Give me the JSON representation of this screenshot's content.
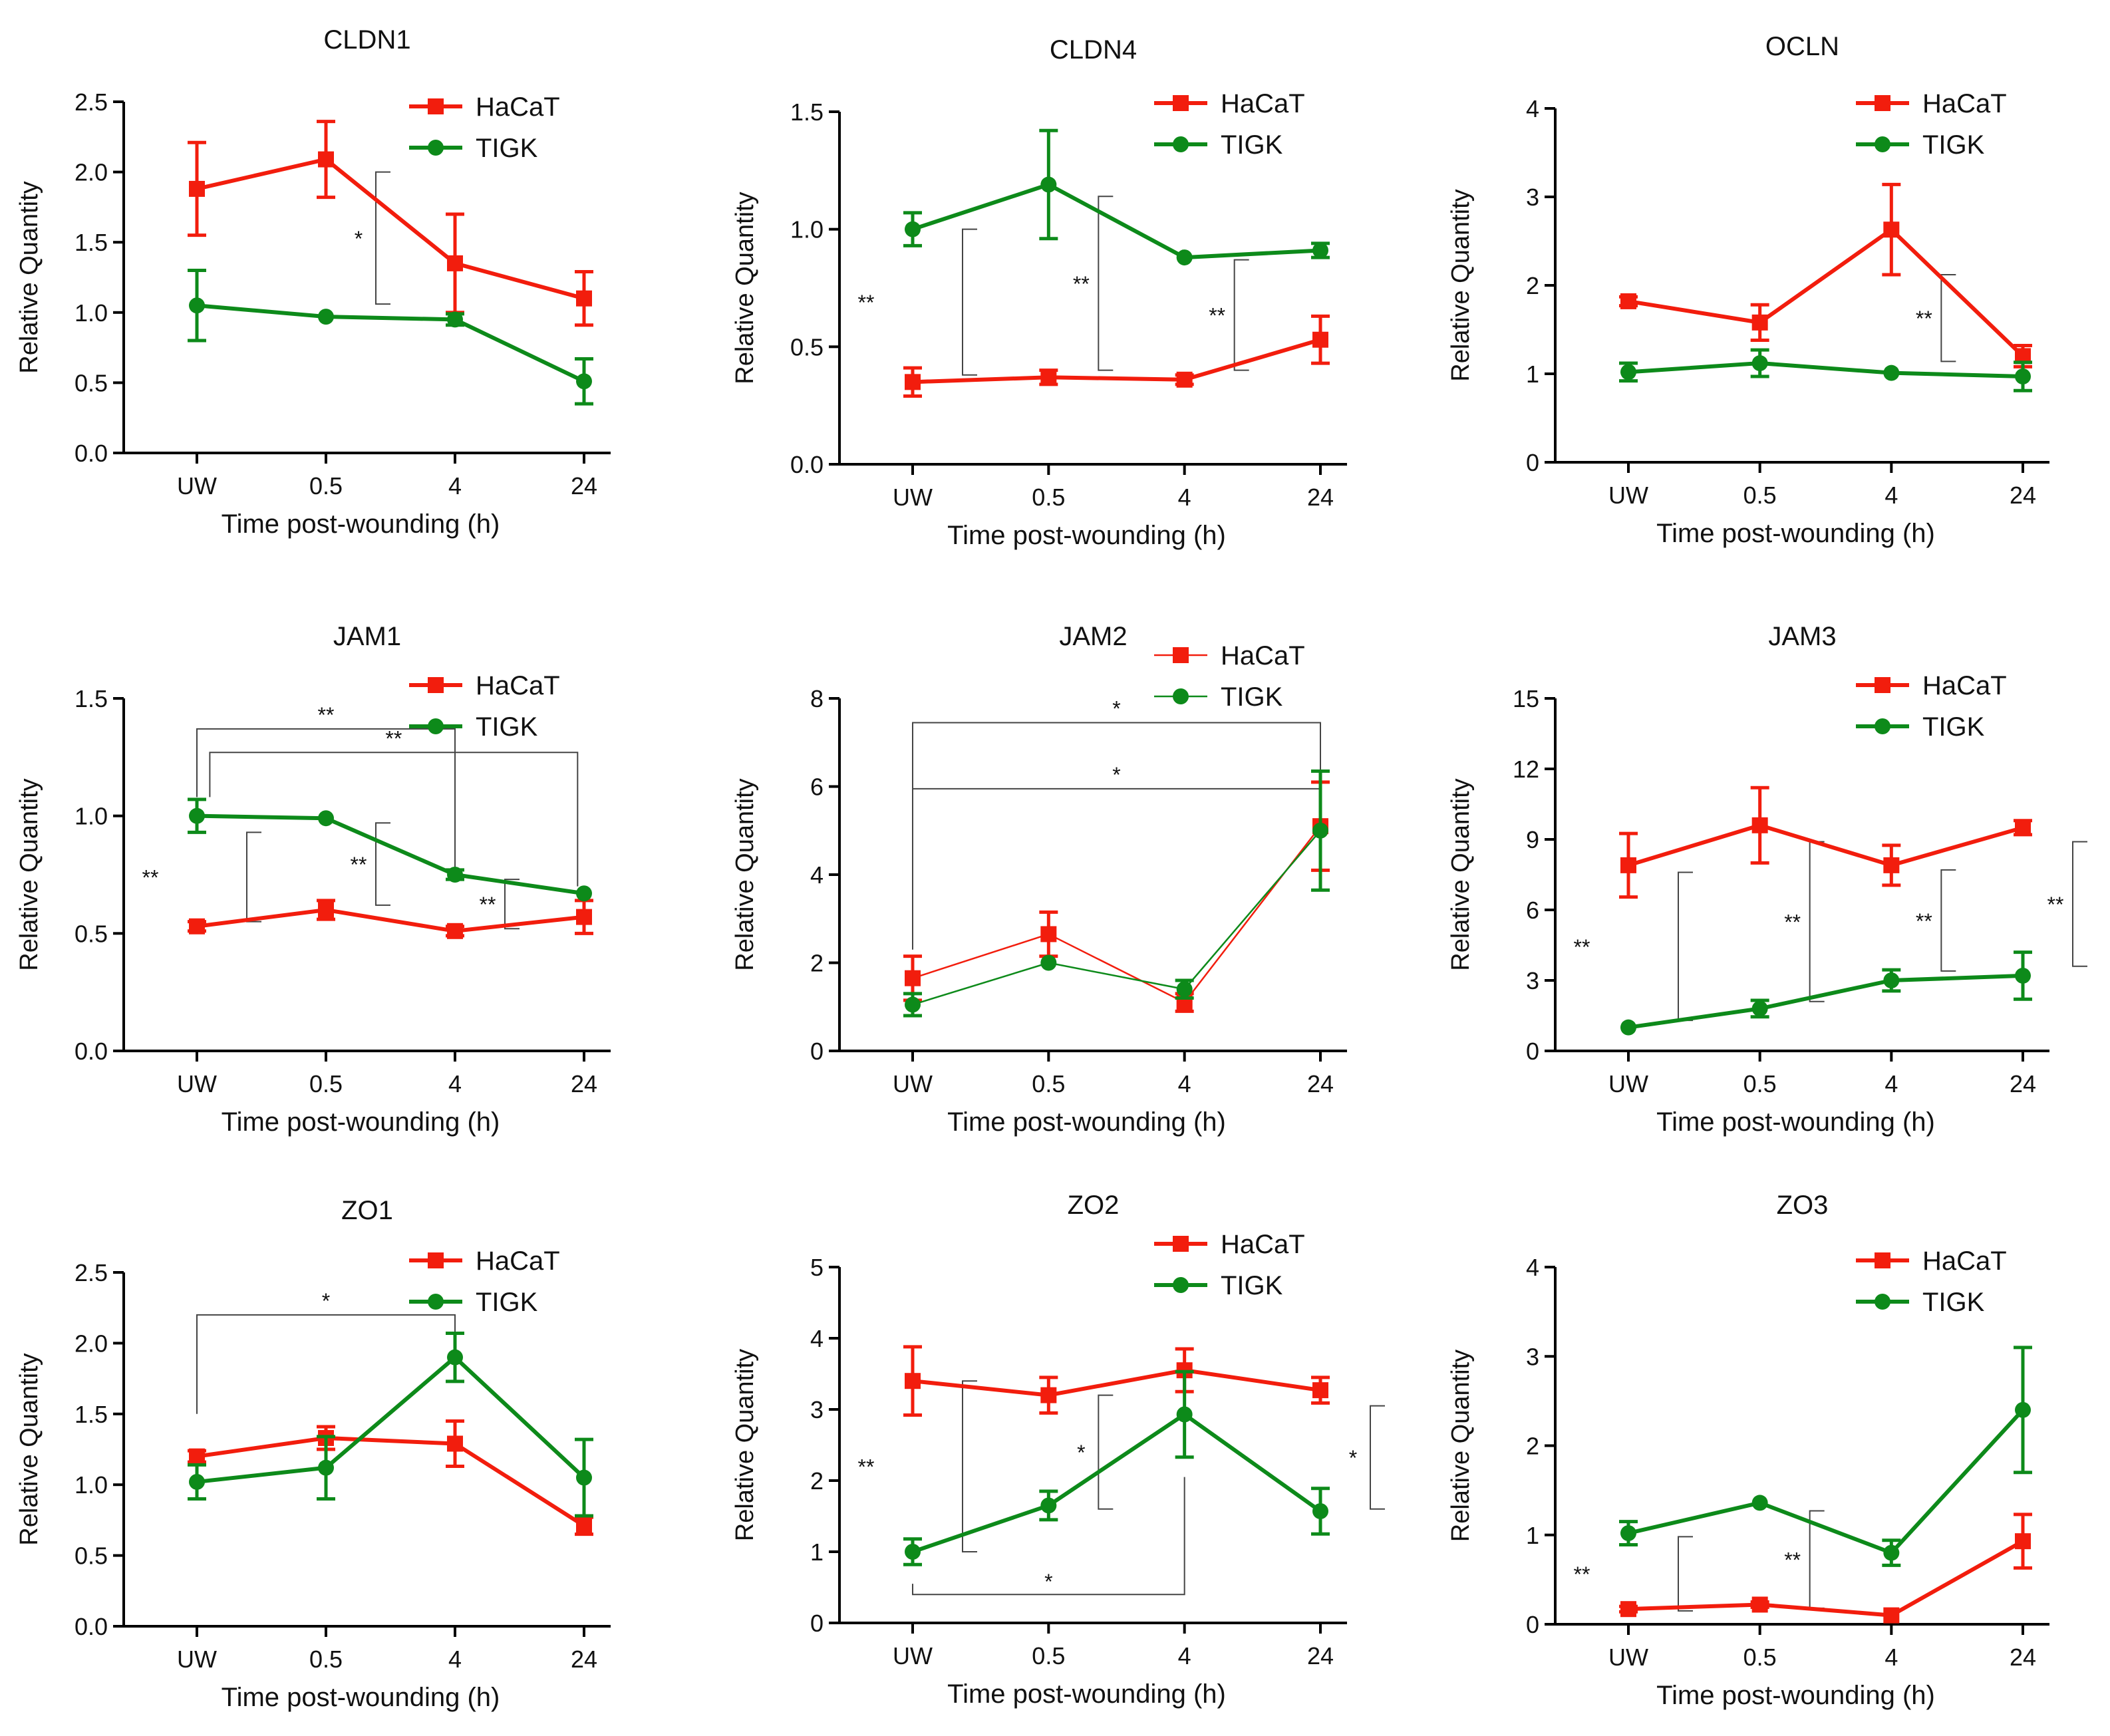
{
  "colors": {
    "hacat": "#f21d0d",
    "tigk": "#0d8a1a",
    "axis": "#000000",
    "bracket": "#444444"
  },
  "legend_labels": {
    "hacat": "HaCaT",
    "tigk": "TIGK"
  },
  "chart_data": [
    {
      "type": "line",
      "id": "CLDN1",
      "title": "CLDN1",
      "xlabel": "Time post-wounding (h)",
      "ylabel": "Relative Quantity",
      "categories": [
        "UW",
        "0.5",
        "4",
        "24"
      ],
      "ylim": [
        0,
        2.5
      ],
      "yticks": [
        "0.0",
        "0.5",
        "1.0",
        "1.5",
        "2.0",
        "2.5"
      ],
      "series": [
        {
          "name": "HaCaT",
          "values": [
            1.88,
            2.09,
            1.35,
            1.1
          ],
          "errors": [
            0.33,
            0.27,
            0.35,
            0.19
          ]
        },
        {
          "name": "TIGK",
          "values": [
            1.05,
            0.97,
            0.95,
            0.51
          ],
          "errors": [
            0.25,
            0.0,
            0.04,
            0.16
          ]
        }
      ],
      "annotations": [
        {
          "label": "*",
          "kind": "vertical",
          "x": 1,
          "from": 1.06,
          "to": 2.0
        }
      ]
    },
    {
      "type": "line",
      "id": "CLDN4",
      "title": "CLDN4",
      "xlabel": "Time post-wounding (h)",
      "ylabel": "Relative Quantity",
      "categories": [
        "UW",
        "0.5",
        "4",
        "24"
      ],
      "ylim": [
        0,
        1.5
      ],
      "yticks": [
        "0.0",
        "0.5",
        "1.0",
        "1.5"
      ],
      "series": [
        {
          "name": "HaCaT",
          "values": [
            0.35,
            0.37,
            0.36,
            0.53
          ],
          "errors": [
            0.06,
            0.03,
            0.02,
            0.1
          ]
        },
        {
          "name": "TIGK",
          "values": [
            1.0,
            1.19,
            0.88,
            0.91
          ],
          "errors": [
            0.07,
            0.23,
            0.0,
            0.03
          ]
        }
      ],
      "annotations": [
        {
          "label": "**",
          "kind": "vertical",
          "x": 0,
          "from": 0.38,
          "to": 1.0
        },
        {
          "label": "**",
          "kind": "vertical",
          "x": 1,
          "from": 0.4,
          "to": 1.14
        },
        {
          "label": "**",
          "kind": "vertical",
          "x": 2,
          "from": 0.4,
          "to": 0.87
        }
      ]
    },
    {
      "type": "line",
      "id": "OCLN",
      "title": "OCLN",
      "xlabel": "Time post-wounding (h)",
      "ylabel": "Relative Quantity",
      "categories": [
        "UW",
        "0.5",
        "4",
        "24"
      ],
      "ylim": [
        0,
        4
      ],
      "yticks": [
        "0",
        "1",
        "2",
        "3",
        "4"
      ],
      "series": [
        {
          "name": "HaCaT",
          "values": [
            1.82,
            1.58,
            2.63,
            1.2
          ],
          "errors": [
            0.05,
            0.2,
            0.51,
            0.12
          ]
        },
        {
          "name": "TIGK",
          "values": [
            1.02,
            1.12,
            1.01,
            0.97
          ],
          "errors": [
            0.1,
            0.15,
            0.0,
            0.16
          ]
        }
      ],
      "annotations": [
        {
          "label": "**",
          "kind": "vertical",
          "x": 2,
          "from": 1.14,
          "to": 2.12
        }
      ]
    },
    {
      "type": "line",
      "id": "JAM1",
      "title": "JAM1",
      "xlabel": "Time post-wounding (h)",
      "ylabel": "Relative Quantity",
      "categories": [
        "UW",
        "0.5",
        "4",
        "24"
      ],
      "ylim": [
        0,
        1.5
      ],
      "yticks": [
        "0.0",
        "0.5",
        "1.0",
        "1.5"
      ],
      "series": [
        {
          "name": "HaCaT",
          "values": [
            0.53,
            0.6,
            0.51,
            0.57
          ],
          "errors": [
            0.02,
            0.04,
            0.02,
            0.07
          ]
        },
        {
          "name": "TIGK",
          "values": [
            1.0,
            0.99,
            0.75,
            0.67
          ],
          "errors": [
            0.07,
            0.0,
            0.02,
            0.0
          ]
        }
      ],
      "annotations": [
        {
          "label": "**",
          "kind": "vertical",
          "x": 0,
          "from": 0.55,
          "to": 0.93
        },
        {
          "label": "**",
          "kind": "vertical",
          "x": 1,
          "from": 0.62,
          "to": 0.97
        },
        {
          "label": "**",
          "kind": "vertical",
          "x": 2,
          "from": 0.52,
          "to": 0.73
        },
        {
          "label": "**",
          "kind": "horizontal",
          "x1": 0,
          "x2": 2,
          "y": 1.37,
          "drop1": 1.08,
          "drop2": 0.78
        },
        {
          "label": "**",
          "kind": "horizontal",
          "x1": 0.1,
          "x2": 2.95,
          "y": 1.27,
          "drop1": 1.08,
          "drop2": 0.7
        }
      ]
    },
    {
      "type": "line",
      "id": "JAM2",
      "title": "JAM2",
      "thin": true,
      "xlabel": "Time post-wounding (h)",
      "ylabel": "Relative Quantity",
      "categories": [
        "UW",
        "0.5",
        "4",
        "24"
      ],
      "ylim": [
        0,
        8
      ],
      "yticks": [
        "0",
        "2",
        "4",
        "6",
        "8"
      ],
      "series": [
        {
          "name": "HaCaT",
          "values": [
            1.65,
            2.65,
            1.1,
            5.1
          ],
          "errors": [
            0.5,
            0.5,
            0.2,
            1.0
          ]
        },
        {
          "name": "TIGK",
          "values": [
            1.05,
            2.0,
            1.4,
            5.0
          ],
          "errors": [
            0.25,
            0.0,
            0.2,
            1.35
          ]
        }
      ],
      "annotations": [
        {
          "label": "*",
          "kind": "horizontal",
          "x1": 0,
          "x2": 3,
          "y": 7.45,
          "drop1": 2.3,
          "drop2": 6.3
        },
        {
          "label": "*",
          "kind": "horizontal",
          "x1": 0,
          "x2": 3,
          "y": 5.95,
          "drop1": 2.3,
          "drop2": 5.6
        }
      ]
    },
    {
      "type": "line",
      "id": "JAM3",
      "title": "JAM3",
      "xlabel": "Time post-wounding (h)",
      "ylabel": "Relative Quantity",
      "categories": [
        "UW",
        "0.5",
        "4",
        "24"
      ],
      "ylim": [
        0,
        15
      ],
      "yticks": [
        "0",
        "3",
        "6",
        "9",
        "12",
        "15"
      ],
      "series": [
        {
          "name": "HaCaT",
          "values": [
            7.9,
            9.6,
            7.9,
            9.5
          ],
          "errors": [
            1.35,
            1.6,
            0.85,
            0.3
          ]
        },
        {
          "name": "TIGK",
          "values": [
            1.0,
            1.8,
            3.0,
            3.2
          ],
          "errors": [
            0.0,
            0.35,
            0.45,
            1.0
          ]
        }
      ],
      "annotations": [
        {
          "label": "**",
          "kind": "vertical",
          "x": 0,
          "from": 1.3,
          "to": 7.6
        },
        {
          "label": "**",
          "kind": "vertical",
          "x": 1,
          "from": 2.1,
          "to": 8.9
        },
        {
          "label": "**",
          "kind": "vertical",
          "x": 2,
          "from": 3.4,
          "to": 7.7
        },
        {
          "label": "**",
          "kind": "vertical",
          "x": 3,
          "from": 3.6,
          "to": 8.9
        }
      ]
    },
    {
      "type": "line",
      "id": "ZO1",
      "title": "ZO1",
      "xlabel": "Time post-wounding (h)",
      "ylabel": "Relative Quantity",
      "categories": [
        "UW",
        "0.5",
        "4",
        "24"
      ],
      "ylim": [
        0,
        2.5
      ],
      "yticks": [
        "0.0",
        "0.5",
        "1.0",
        "1.5",
        "2.0",
        "2.5"
      ],
      "series": [
        {
          "name": "HaCaT",
          "values": [
            1.2,
            1.33,
            1.29,
            0.71
          ],
          "errors": [
            0.04,
            0.08,
            0.16,
            0.06
          ]
        },
        {
          "name": "TIGK",
          "values": [
            1.02,
            1.12,
            1.9,
            1.05
          ],
          "errors": [
            0.12,
            0.22,
            0.17,
            0.27
          ]
        }
      ],
      "annotations": [
        {
          "label": "*",
          "kind": "horizontal",
          "x1": 0,
          "x2": 2,
          "y": 2.2,
          "drop1": 1.5,
          "drop2": 2.08
        }
      ]
    },
    {
      "type": "line",
      "id": "ZO2",
      "title": "ZO2",
      "xlabel": "Time post-wounding (h)",
      "ylabel": "Relative Quantity",
      "categories": [
        "UW",
        "0.5",
        "4",
        "24"
      ],
      "ylim": [
        0,
        5
      ],
      "yticks": [
        "0",
        "1",
        "2",
        "3",
        "4",
        "5"
      ],
      "series": [
        {
          "name": "HaCaT",
          "values": [
            3.4,
            3.2,
            3.55,
            3.27
          ],
          "errors": [
            0.48,
            0.25,
            0.3,
            0.18
          ]
        },
        {
          "name": "TIGK",
          "values": [
            1.0,
            1.65,
            2.93,
            1.57
          ],
          "errors": [
            0.18,
            0.2,
            0.6,
            0.32
          ]
        }
      ],
      "annotations": [
        {
          "label": "**",
          "kind": "vertical",
          "x": 0,
          "from": 1.0,
          "to": 3.4
        },
        {
          "label": "*",
          "kind": "vertical",
          "x": 1,
          "from": 1.6,
          "to": 3.2
        },
        {
          "label": "*",
          "kind": "vertical",
          "x": 3,
          "from": 1.6,
          "to": 3.05
        },
        {
          "label": "*",
          "kind": "horizontal",
          "x1": 0,
          "x2": 2,
          "y": 0.4,
          "drop1": 0.55,
          "drop2": 2.05,
          "below": true
        }
      ]
    },
    {
      "type": "line",
      "id": "ZO3",
      "title": "ZO3",
      "xlabel": "Time post-wounding (h)",
      "ylabel": "Relative Quantity",
      "categories": [
        "UW",
        "0.5",
        "4",
        "24"
      ],
      "ylim": [
        0,
        4
      ],
      "yticks": [
        "0",
        "1",
        "2",
        "3",
        "4"
      ],
      "series": [
        {
          "name": "HaCaT",
          "values": [
            0.17,
            0.22,
            0.1,
            0.93
          ],
          "errors": [
            0.03,
            0.03,
            0.0,
            0.3
          ]
        },
        {
          "name": "TIGK",
          "values": [
            1.02,
            1.36,
            0.8,
            2.4
          ],
          "errors": [
            0.13,
            0.0,
            0.14,
            0.7
          ]
        }
      ],
      "annotations": [
        {
          "label": "**",
          "kind": "vertical",
          "x": 0,
          "from": 0.15,
          "to": 0.98
        },
        {
          "label": "**",
          "kind": "vertical",
          "x": 1,
          "from": 0.18,
          "to": 1.27
        }
      ]
    }
  ]
}
